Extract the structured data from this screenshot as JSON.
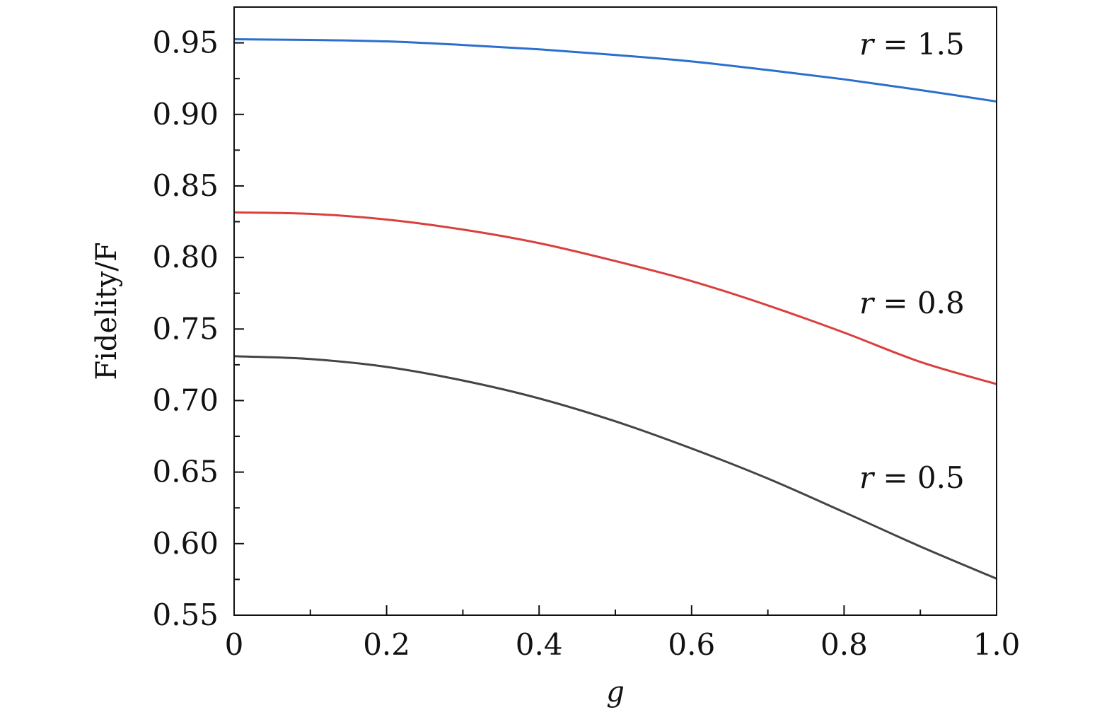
{
  "chart_data": {
    "type": "line",
    "xlabel": "g",
    "ylabel": "Fidelity/F",
    "xlim": [
      0,
      1.0
    ],
    "ylim": [
      0.55,
      0.975
    ],
    "xticks": [
      0,
      0.2,
      0.4,
      0.6,
      0.8,
      1.0
    ],
    "xtick_labels": [
      "0",
      "0.2",
      "0.4",
      "0.6",
      "0.8",
      "1.0"
    ],
    "xminor": [
      0.1,
      0.3,
      0.5,
      0.7,
      0.9
    ],
    "yticks": [
      0.55,
      0.6,
      0.65,
      0.7,
      0.75,
      0.8,
      0.85,
      0.9,
      0.95
    ],
    "ytick_labels": [
      "0.55",
      "0.60",
      "0.65",
      "0.70",
      "0.75",
      "0.80",
      "0.85",
      "0.90",
      "0.95"
    ],
    "yminor": [
      0.575,
      0.625,
      0.675,
      0.725,
      0.775,
      0.825,
      0.875,
      0.925
    ],
    "grid": false,
    "x": [
      0,
      0.1,
      0.2,
      0.3,
      0.4,
      0.5,
      0.6,
      0.7,
      0.8,
      0.9,
      1.0
    ],
    "series": [
      {
        "name": "r = 1.5",
        "label_var": "r",
        "label_value": "1.5",
        "color": "#2b6fce",
        "label_at": [
          0.82,
          0.942
        ],
        "values": [
          0.9525,
          0.952,
          0.951,
          0.9485,
          0.9455,
          0.9415,
          0.937,
          0.931,
          0.9245,
          0.917,
          0.909
        ]
      },
      {
        "name": "r = 0.8",
        "label_var": "r",
        "label_value": "0.8",
        "color": "#d9403d",
        "label_at": [
          0.82,
          0.761
        ],
        "values": [
          0.8315,
          0.8305,
          0.8265,
          0.8195,
          0.81,
          0.7975,
          0.7835,
          0.7665,
          0.7475,
          0.727,
          0.7115
        ]
      },
      {
        "name": "r = 0.5",
        "label_var": "r",
        "label_value": "0.5",
        "color": "#444444",
        "label_at": [
          0.82,
          0.639
        ],
        "values": [
          0.731,
          0.729,
          0.7235,
          0.714,
          0.7015,
          0.6855,
          0.6665,
          0.6455,
          0.622,
          0.598,
          0.5755
        ]
      }
    ]
  }
}
